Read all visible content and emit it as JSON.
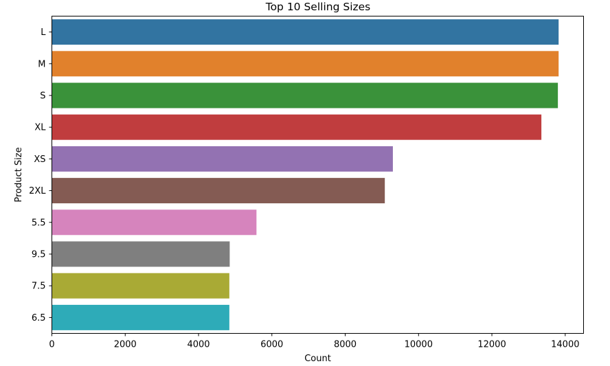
{
  "chart_data": {
    "type": "bar",
    "orientation": "horizontal",
    "title": "Top 10 Selling Sizes",
    "xlabel": "Count",
    "ylabel": "Product Size",
    "categories": [
      "L",
      "M",
      "S",
      "XL",
      "XS",
      "2XL",
      "5.5",
      "9.5",
      "7.5",
      "6.5"
    ],
    "values": [
      13820,
      13820,
      13800,
      13350,
      9300,
      9080,
      5580,
      4850,
      4840,
      4840
    ],
    "colors": [
      "#3274a1",
      "#e1812c",
      "#3a923a",
      "#c03d3e",
      "#9372b2",
      "#845b53",
      "#d684bd",
      "#7f7f7f",
      "#a9aa35",
      "#2eabb8"
    ],
    "xlim": [
      0,
      14500
    ],
    "xticks": [
      0,
      2000,
      4000,
      6000,
      8000,
      10000,
      12000,
      14000
    ],
    "grid": false,
    "legend": "none"
  }
}
